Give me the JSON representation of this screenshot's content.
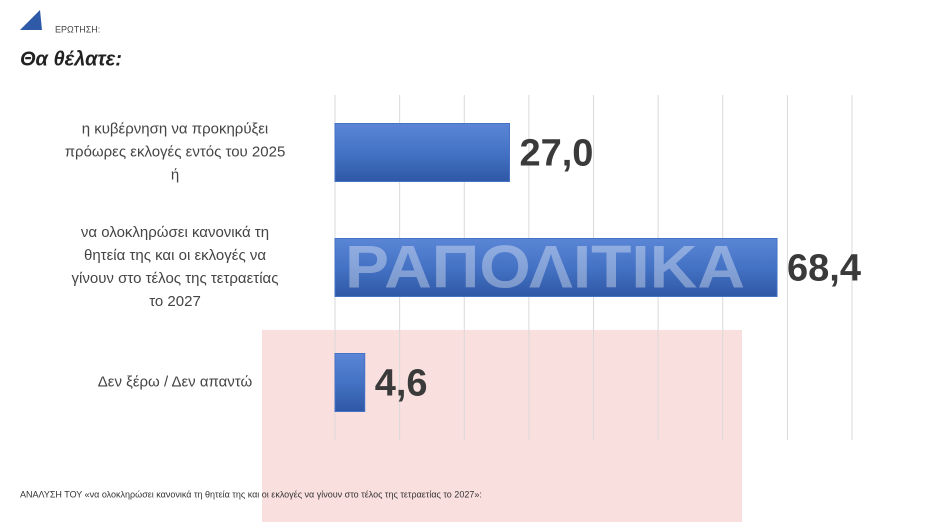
{
  "chart_data": {
    "type": "barh",
    "question_label": "ΕΡΩΤΗΣΗ:",
    "title": "Θα θέλατε:",
    "categories": [
      "η κυβέρνηση να προκηρύξει\nπρόωρες εκλογές εντός του 2025\nή",
      "να ολοκληρώσει κανονικά τη\nθητεία της και οι εκλογές να\nγίνουν στο τέλος της τετραετίας\nτο 2027",
      "Δεν ξέρω / Δεν απαντώ"
    ],
    "values": [
      27.0,
      68.4,
      4.6
    ],
    "value_labels": [
      "27,0",
      "68,4",
      "4,6"
    ],
    "color": "#4472c4",
    "xlim": [
      0,
      80
    ],
    "xticks": [
      0,
      10,
      20,
      30,
      40,
      50,
      60,
      70,
      80
    ],
    "grid": true,
    "watermark": "ΡΑΠΟΛΙΤΙΚΑ",
    "footnote": "ΑΝΑΛΥΣΗ ΤΟΥ «να ολοκληρώσει κανονικά τη θητεία της και οι εκλογές να γίνουν στο τέλος της τετραετίας το 2027»:"
  }
}
